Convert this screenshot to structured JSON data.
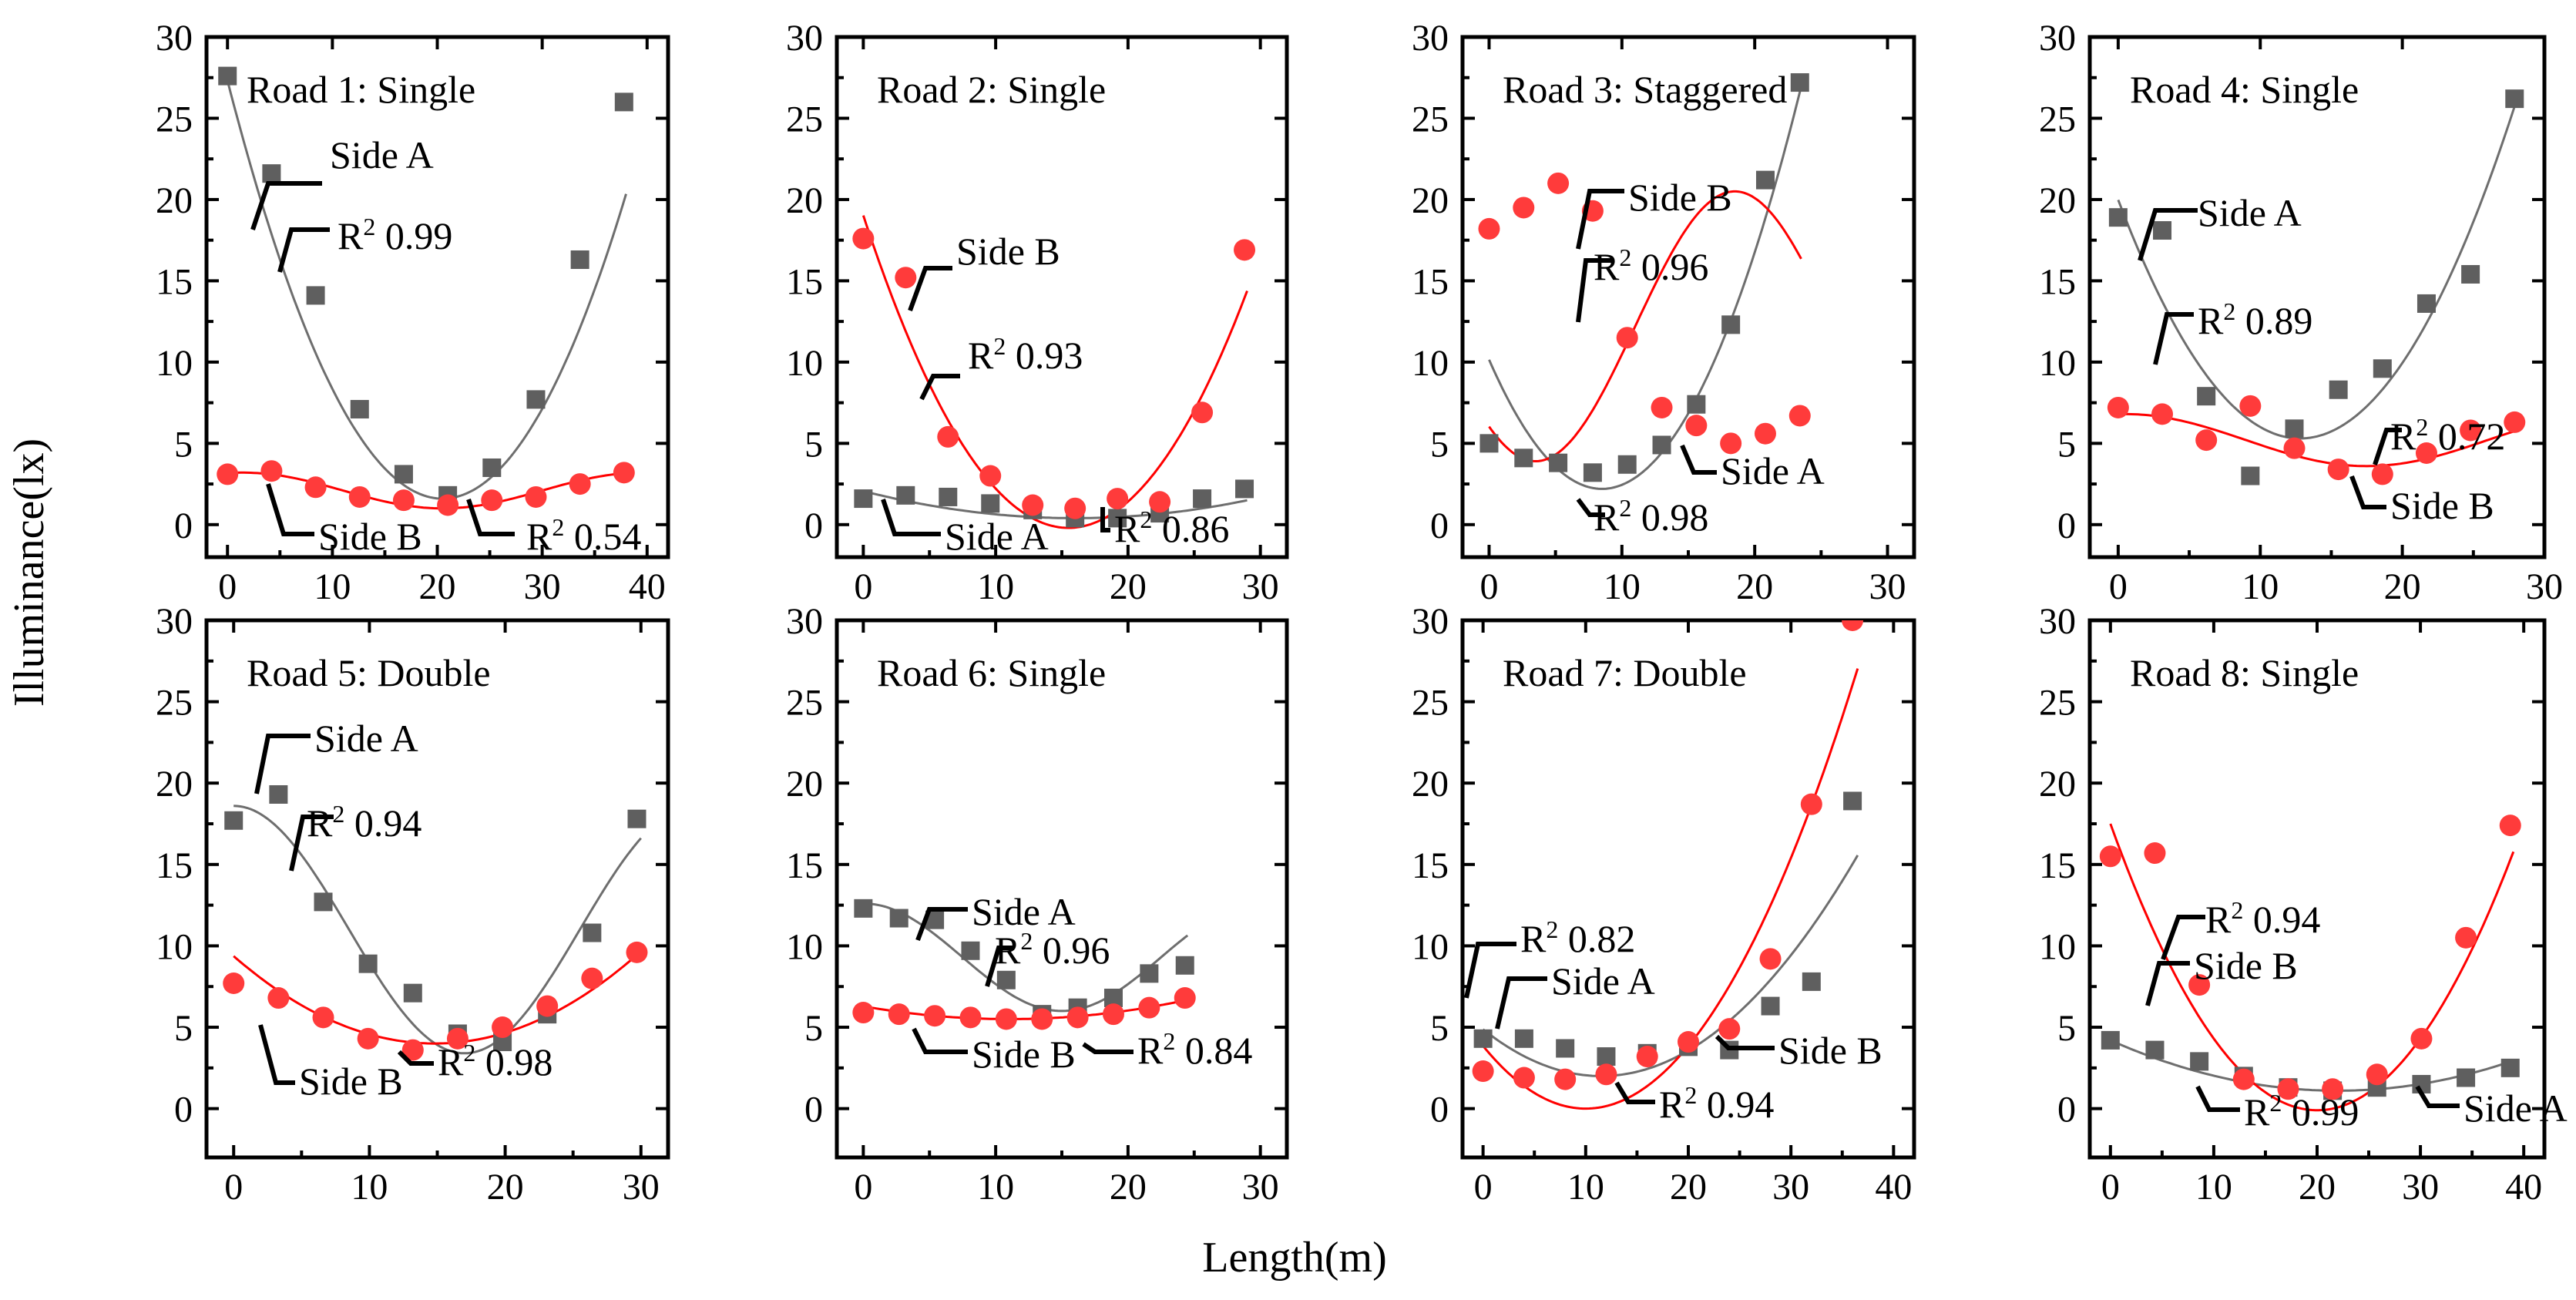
{
  "figure": {
    "xlabel": "Length(m)",
    "ylabel": "Illuminance(lx)"
  },
  "colors": {
    "sideA": "#5f5f5f",
    "sideB": "#ff3b3b",
    "fitA": "#6e6e6e",
    "fitB": "#ff0000"
  },
  "chart_data": [
    {
      "type": "scatter",
      "title": "Road 1: Single",
      "xlim": [
        -2,
        42
      ],
      "xticks": [
        0,
        10,
        20,
        30,
        40
      ],
      "ylim": [
        -2,
        30
      ],
      "yticks": [
        0,
        5,
        10,
        15,
        20,
        25,
        30
      ],
      "series": [
        {
          "name": "Side A",
          "marker": "square",
          "x": [
            0,
            4.2,
            8.4,
            12.6,
            16.8,
            21,
            25.2,
            29.4,
            33.6,
            37.8
          ],
          "y": [
            27.6,
            21.6,
            14.1,
            7.1,
            3.1,
            1.8,
            3.5,
            7.7,
            16.3,
            26.0
          ],
          "fit": {
            "type": "poly2",
            "vertex_x": 20.5,
            "vertex_y": 1.6,
            "a": 0.0612,
            "xmin": 0,
            "xmax": 38
          }
        },
        {
          "name": "Side B",
          "marker": "circle",
          "x": [
            0,
            4.2,
            8.4,
            12.6,
            16.8,
            21,
            25.2,
            29.4,
            33.6,
            37.8
          ],
          "y": [
            3.1,
            3.3,
            2.3,
            1.7,
            1.5,
            1.2,
            1.5,
            1.7,
            2.5,
            3.2
          ],
          "fit": {
            "type": "sine",
            "mean": 2.1,
            "amp": 1.1,
            "period": 38,
            "phase": -8,
            "xmin": 0,
            "xmax": 38
          }
        }
      ],
      "r2": {
        "Side A": "0.99",
        "Side B": "0.54"
      }
    },
    {
      "type": "scatter",
      "title": "Road 2: Single",
      "xlim": [
        -2,
        32
      ],
      "xticks": [
        0,
        10,
        20,
        30
      ],
      "ylim": [
        -2,
        30
      ],
      "yticks": [
        0,
        5,
        10,
        15,
        20,
        25,
        30
      ],
      "series": [
        {
          "name": "Side A",
          "marker": "square",
          "x": [
            0,
            3.2,
            6.4,
            9.6,
            12.8,
            16,
            19.2,
            22.4,
            25.6,
            28.8
          ],
          "y": [
            1.6,
            1.8,
            1.7,
            1.3,
            0.9,
            0.4,
            0.4,
            0.7,
            1.6,
            2.2
          ],
          "fit": {
            "type": "poly2",
            "vertex_x": 16,
            "vertex_y": 0.4,
            "a": 0.0065,
            "xmin": 0,
            "xmax": 29
          }
        },
        {
          "name": "Side B",
          "marker": "circle",
          "x": [
            0,
            3.2,
            6.4,
            9.6,
            12.8,
            16,
            19.2,
            22.4,
            25.6,
            28.8
          ],
          "y": [
            17.6,
            15.2,
            5.4,
            3.0,
            1.2,
            1.0,
            1.6,
            1.4,
            6.9,
            16.9
          ],
          "fit": {
            "type": "poly2",
            "vertex_x": 15.5,
            "vertex_y": -0.2,
            "a": 0.08,
            "xmin": 0,
            "xmax": 29
          }
        }
      ],
      "r2": {
        "Side A": "0.86",
        "Side B": "0.93"
      }
    },
    {
      "type": "scatter",
      "title": "Road 3: Staggered",
      "xlim": [
        -2,
        32
      ],
      "xticks": [
        0,
        10,
        20,
        30
      ],
      "ylim": [
        -2,
        30
      ],
      "yticks": [
        0,
        5,
        10,
        15,
        20,
        25,
        30
      ],
      "series": [
        {
          "name": "Side A",
          "marker": "square",
          "x": [
            0,
            2.6,
            5.2,
            7.8,
            10.4,
            13,
            15.6,
            18.2,
            20.8,
            23.4
          ],
          "y": [
            5.0,
            4.1,
            3.8,
            3.2,
            3.7,
            4.9,
            7.4,
            12.3,
            21.2,
            27.2
          ],
          "fit": {
            "type": "poly2",
            "vertex_x": 8.5,
            "vertex_y": 2.2,
            "a": 0.11,
            "xmin": 0,
            "xmax": 23.5
          }
        },
        {
          "name": "Side B",
          "marker": "circle",
          "x": [
            0,
            2.6,
            5.2,
            7.8,
            10.4,
            13,
            15.6,
            18.2,
            20.8,
            23.4
          ],
          "y": [
            18.2,
            19.5,
            21.0,
            19.3,
            11.5,
            7.2,
            6.1,
            5.0,
            5.6,
            6.7
          ],
          "fit": {
            "type": "sine",
            "mean": 12.2,
            "amp": 8.3,
            "period": 30,
            "phase": 11,
            "xmin": 0,
            "xmax": 23.5
          }
        }
      ],
      "r2": {
        "Side A": "0.98",
        "Side B": "0.96"
      }
    },
    {
      "type": "scatter",
      "title": "Road 4: Single",
      "xlim": [
        -2,
        30
      ],
      "xticks": [
        0,
        10,
        20,
        30
      ],
      "ylim": [
        -2,
        30
      ],
      "yticks": [
        0,
        5,
        10,
        15,
        20,
        25,
        30
      ],
      "series": [
        {
          "name": "Side A",
          "marker": "square",
          "x": [
            0,
            3.1,
            6.2,
            9.3,
            12.4,
            15.5,
            18.6,
            21.7,
            24.8,
            27.9
          ],
          "y": [
            18.9,
            18.1,
            7.9,
            3.0,
            5.9,
            8.3,
            9.6,
            13.6,
            15.4,
            26.2
          ],
          "fit": {
            "type": "poly2",
            "vertex_x": 12.8,
            "vertex_y": 5.3,
            "a": 0.0896,
            "xmin": 0,
            "xmax": 28
          }
        },
        {
          "name": "Side B",
          "marker": "circle",
          "x": [
            0,
            3.1,
            6.2,
            9.3,
            12.4,
            15.5,
            18.6,
            21.7,
            24.8,
            27.9
          ],
          "y": [
            7.2,
            6.8,
            5.2,
            7.3,
            4.7,
            3.4,
            3.1,
            4.4,
            5.8,
            6.3
          ],
          "fit": {
            "type": "sine",
            "mean": 5.2,
            "amp": 1.6,
            "period": 34,
            "phase": -8,
            "xmin": 0,
            "xmax": 28
          }
        }
      ],
      "r2": {
        "Side A": "0.89",
        "Side B": "0.72"
      }
    },
    {
      "type": "scatter",
      "title": "Road 5: Double",
      "xlim": [
        -2,
        32
      ],
      "xticks": [
        0,
        10,
        20,
        30
      ],
      "ylim": [
        -3,
        30
      ],
      "yticks": [
        0,
        5,
        10,
        15,
        20,
        25,
        30
      ],
      "series": [
        {
          "name": "Side A",
          "marker": "square",
          "x": [
            0,
            3.3,
            6.6,
            9.9,
            13.2,
            16.5,
            19.8,
            23.1,
            26.4,
            29.7
          ],
          "y": [
            17.7,
            19.3,
            12.7,
            8.9,
            7.1,
            4.6,
            4.1,
            5.8,
            10.8,
            17.8
          ],
          "fit": {
            "type": "sine",
            "mean": 11.0,
            "amp": 7.6,
            "period": 34,
            "phase": -8.5,
            "xmin": 0,
            "xmax": 30
          }
        },
        {
          "name": "Side B",
          "marker": "circle",
          "x": [
            0,
            3.3,
            6.6,
            9.9,
            13.2,
            16.5,
            19.8,
            23.1,
            26.4,
            29.7
          ],
          "y": [
            7.7,
            6.8,
            5.6,
            4.3,
            3.6,
            4.3,
            5.0,
            6.3,
            8.0,
            9.6
          ],
          "fit": {
            "type": "poly2",
            "vertex_x": 14.8,
            "vertex_y": 4.0,
            "a": 0.0245,
            "xmin": 0,
            "xmax": 30
          }
        }
      ],
      "r2": {
        "Side A": "0.94",
        "Side B": "0.98"
      }
    },
    {
      "type": "scatter",
      "title": "Road 6: Single",
      "xlim": [
        -2,
        32
      ],
      "xticks": [
        0,
        10,
        20,
        30
      ],
      "ylim": [
        -3,
        30
      ],
      "yticks": [
        0,
        5,
        10,
        15,
        20,
        25,
        30
      ],
      "series": [
        {
          "name": "Side A",
          "marker": "square",
          "x": [
            0,
            2.7,
            5.4,
            8.1,
            10.8,
            13.5,
            16.2,
            18.9,
            21.6,
            24.3
          ],
          "y": [
            12.3,
            11.7,
            11.6,
            9.7,
            7.9,
            5.8,
            6.2,
            6.8,
            8.3,
            8.8
          ],
          "fit": {
            "type": "sine",
            "mean": 9.3,
            "amp": 3.3,
            "period": 30,
            "phase": -7.5,
            "xmin": 0,
            "xmax": 24.5
          }
        },
        {
          "name": "Side B",
          "marker": "circle",
          "x": [
            0,
            2.7,
            5.4,
            8.1,
            10.8,
            13.5,
            16.2,
            18.9,
            21.6,
            24.3
          ],
          "y": [
            5.9,
            5.8,
            5.7,
            5.6,
            5.5,
            5.5,
            5.6,
            5.8,
            6.2,
            6.8
          ],
          "fit": {
            "type": "poly2",
            "vertex_x": 11,
            "vertex_y": 5.5,
            "a": 0.0065,
            "xmin": 0,
            "xmax": 24.5
          }
        }
      ],
      "r2": {
        "Side A": "0.96",
        "Side B": "0.84"
      }
    },
    {
      "type": "scatter",
      "title": "Road 7: Double",
      "xlim": [
        -2,
        42
      ],
      "xticks": [
        0,
        10,
        20,
        30,
        40
      ],
      "ylim": [
        -3,
        30
      ],
      "yticks": [
        0,
        5,
        10,
        15,
        20,
        25,
        30
      ],
      "series": [
        {
          "name": "Side A",
          "marker": "square",
          "x": [
            0,
            4,
            8,
            12,
            16,
            20,
            24,
            28,
            32,
            36
          ],
          "y": [
            4.3,
            4.3,
            3.7,
            3.2,
            3.4,
            3.8,
            3.6,
            6.3,
            7.8,
            18.9
          ],
          "fit": {
            "type": "poly2",
            "vertex_x": 11.5,
            "vertex_y": 2.0,
            "a": 0.0217,
            "xmin": 0,
            "xmax": 36.5
          }
        },
        {
          "name": "Side B",
          "marker": "circle",
          "x": [
            0,
            4,
            8,
            12,
            16,
            20,
            24,
            28,
            32,
            36
          ],
          "y": [
            2.3,
            1.9,
            1.8,
            2.1,
            3.2,
            4.1,
            4.9,
            9.2,
            18.7,
            30.0
          ],
          "fit": {
            "type": "poly2",
            "vertex_x": 10,
            "vertex_y": 0.0,
            "a": 0.0385,
            "xmin": 0,
            "xmax": 36.5
          }
        }
      ],
      "r2": {
        "Side A": "0.82",
        "Side B": "0.94"
      }
    },
    {
      "type": "scatter",
      "title": "Road 8: Single",
      "xlim": [
        -2,
        42
      ],
      "xticks": [
        0,
        10,
        20,
        30,
        40
      ],
      "ylim": [
        -3,
        30
      ],
      "yticks": [
        0,
        5,
        10,
        15,
        20,
        25,
        30
      ],
      "series": [
        {
          "name": "Side A",
          "marker": "square",
          "x": [
            0,
            4.3,
            8.6,
            12.9,
            17.2,
            21.5,
            25.8,
            30.1,
            34.4,
            38.7
          ],
          "y": [
            4.2,
            3.6,
            2.9,
            2.0,
            1.3,
            1.1,
            1.3,
            1.5,
            1.9,
            2.5
          ],
          "fit": {
            "type": "poly2",
            "vertex_x": 22,
            "vertex_y": 1.1,
            "a": 0.0064,
            "xmin": 0,
            "xmax": 39
          }
        },
        {
          "name": "Side B",
          "marker": "circle",
          "x": [
            0,
            4.3,
            8.6,
            12.9,
            17.2,
            21.5,
            25.8,
            30.1,
            34.4,
            38.7
          ],
          "y": [
            15.5,
            15.7,
            7.6,
            1.8,
            1.2,
            1.2,
            2.1,
            4.3,
            10.5,
            17.4
          ],
          "fit": {
            "type": "poly2",
            "vertex_x": 20,
            "vertex_y": -0.1,
            "a": 0.044,
            "xmin": 0,
            "xmax": 39
          }
        }
      ],
      "r2": {
        "Side A": "0.99",
        "Side B": "0.94"
      }
    }
  ]
}
